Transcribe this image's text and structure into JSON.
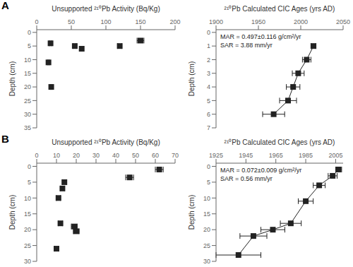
{
  "chart_data": [
    {
      "type": "scatter",
      "title": "A",
      "x_label": "Unsupported ²¹⁰Pb Activity (Bq/Kg)",
      "y_label": "Depth (cm)",
      "x": [
        20,
        17,
        21,
        55,
        65,
        120,
        150
      ],
      "values": [
        4,
        11,
        20,
        5,
        6,
        5,
        3
      ],
      "xerr": [
        1.5,
        1,
        1,
        2,
        3,
        3,
        5
      ],
      "xlim": [
        0,
        200
      ],
      "ylim": [
        35,
        -1
      ],
      "xticks": [
        0,
        50,
        100,
        150,
        200
      ],
      "yticks": [
        0,
        5,
        10,
        15,
        20,
        25,
        30,
        35
      ],
      "marker": "square",
      "color": "#222222",
      "grid": false
    },
    {
      "type": "line",
      "x_label": "²¹⁰Pb Calculated CIC Ages (yrs AD)",
      "y_label": "Depth (cm)",
      "x": [
        2015,
        2007,
        1997,
        1991,
        1985,
        1968
      ],
      "values": [
        1,
        2,
        3,
        4,
        5,
        6
      ],
      "xerr": [
        3,
        5,
        7,
        8,
        10,
        13
      ],
      "xlim": [
        1900,
        2050
      ],
      "ylim": [
        7,
        -0.2
      ],
      "xticks": [
        1900,
        1950,
        2000,
        2050
      ],
      "yticks": [
        0,
        1,
        2,
        3,
        4,
        5,
        6,
        7
      ],
      "marker": "square",
      "line_style": "solid",
      "color": "#222222",
      "grid": false,
      "annotations": [
        "MAR = 0.497±0.116 g/cm²/yr",
        "SAR = 3.88 mm/yr"
      ]
    },
    {
      "type": "scatter",
      "title": "B",
      "x_label": "Unsupported ²¹⁰Pb Activity (Bq/Kg)",
      "y_label": "Depth (cm)",
      "x": [
        62,
        47,
        14,
        13,
        11,
        12,
        19,
        20,
        10
      ],
      "values": [
        1,
        3.5,
        5,
        7,
        10,
        18,
        19,
        20.5,
        26
      ],
      "xerr": [
        2,
        2,
        1,
        1,
        1,
        1,
        1.5,
        1.5,
        1
      ],
      "xlim": [
        0,
        70
      ],
      "ylim": [
        30,
        -1
      ],
      "xticks": [
        0,
        10,
        20,
        30,
        40,
        50,
        60,
        70
      ],
      "yticks": [
        0,
        5,
        10,
        15,
        20,
        25,
        30
      ],
      "marker": "square",
      "color": "#222222",
      "grid": false
    },
    {
      "type": "line",
      "x_label": "²¹⁰Pb Calculated CIC Ages (yrs AD)",
      "y_label": "Depth (cm)",
      "x": [
        2007,
        2003,
        1994,
        1985,
        1975,
        1963,
        1950,
        1940
      ],
      "values": [
        1,
        3,
        6,
        11,
        18,
        20,
        22,
        28
      ],
      "xerr": [
        2,
        3,
        4,
        5,
        7,
        8,
        9,
        15
      ],
      "xlim": [
        1925,
        2010
      ],
      "ylim": [
        30,
        -1
      ],
      "xticks": [
        1925,
        1945,
        1965,
        1985,
        2005
      ],
      "yticks": [
        0,
        5,
        10,
        15,
        20,
        25,
        30
      ],
      "marker": "square",
      "line_style": "solid",
      "color": "#222222",
      "grid": false,
      "annotations": [
        "MAR = 0.072±0.009 g/cm²/yr",
        "SAR = 0.56 mm/yr"
      ]
    }
  ]
}
